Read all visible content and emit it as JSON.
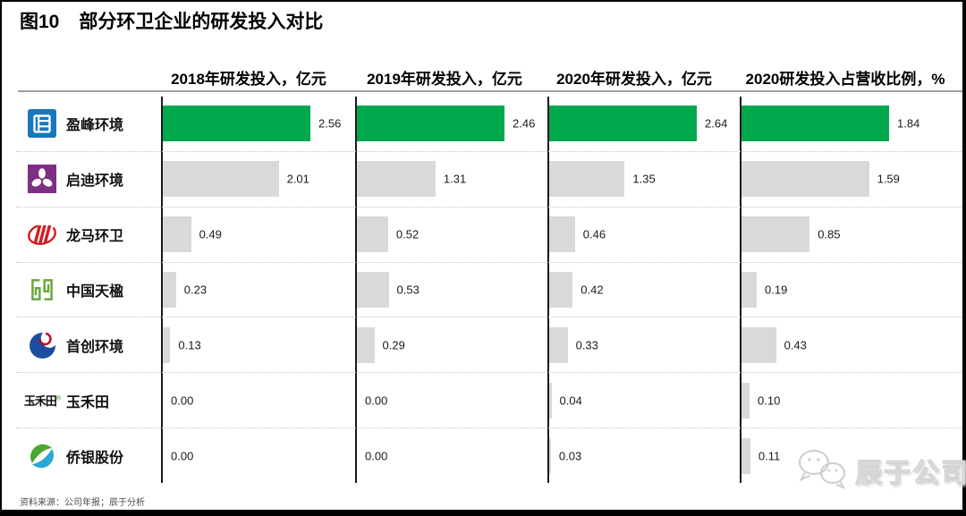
{
  "page": {
    "title_prefix": "图10",
    "title": "部分环卫企业的研发投入对比",
    "source": "资料来源：公司年报；辰于分析",
    "watermark": "辰于公司"
  },
  "chart_data": {
    "type": "bar",
    "orientation": "horizontal",
    "title": "部分环卫企业的研发投入对比",
    "categories": [
      "盈峰环境",
      "启迪环境",
      "龙马环卫",
      "中国天楹",
      "首创环境",
      "玉禾田",
      "侨银股份"
    ],
    "series": [
      {
        "name": "2018年研发投入，亿元",
        "values": [
          2.56,
          2.01,
          0.49,
          0.23,
          0.13,
          0.0,
          0.0
        ]
      },
      {
        "name": "2019年研发投入，亿元",
        "values": [
          2.46,
          1.31,
          0.52,
          0.53,
          0.29,
          0.0,
          0.0
        ]
      },
      {
        "name": "2020年研发投入，亿元",
        "values": [
          2.64,
          1.35,
          0.46,
          0.42,
          0.33,
          0.04,
          0.03
        ]
      },
      {
        "name": "2020研发投入占营收比例，%",
        "values": [
          1.84,
          1.59,
          0.85,
          0.19,
          0.43,
          0.1,
          0.11
        ]
      }
    ],
    "highlight_row": 0,
    "highlight_color": "#00a84d",
    "bar_color": "#d9d9d9",
    "value_labels": true,
    "value_format": "0.00",
    "grid": "dotted-row-separators",
    "legend_position": "left-labels-with-logos"
  },
  "companies": [
    {
      "name": "盈峰环境",
      "logo": "yingfeng-environment-logo",
      "color1": "#1778be",
      "color2": "#ffffff"
    },
    {
      "name": "启迪环境",
      "logo": "qidi-environment-logo",
      "color1": "#7d2f86",
      "color2": "#ffffff"
    },
    {
      "name": "龙马环卫",
      "logo": "longma-sanitation-logo",
      "color1": "#d21f26",
      "color2": "#d21f26"
    },
    {
      "name": "中国天楹",
      "logo": "china-tianying-logo",
      "color1": "#66a93b",
      "color2": "#66a93b"
    },
    {
      "name": "首创环境",
      "logo": "capital-environment-logo",
      "color1": "#1c4da0",
      "color2": "#c00321"
    },
    {
      "name": "玉禾田",
      "logo": "yuhetian-logo",
      "color1": "#111111",
      "color2": "#4ca832"
    },
    {
      "name": "侨银股份",
      "logo": "qiaoyin-logo",
      "color1": "#4ca832",
      "color2": "#2aa7d6"
    }
  ]
}
